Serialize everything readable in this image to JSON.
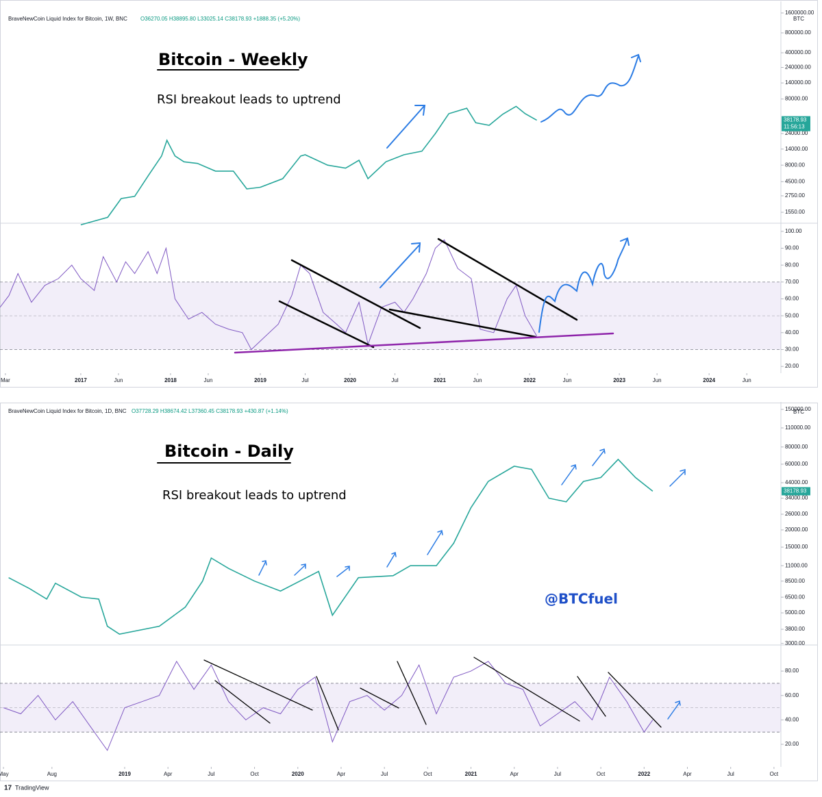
{
  "footer": "TradingView",
  "chart_data": [
    {
      "type": "line",
      "legend_text": "BraveNewCoin Liquid Index for Bitcoin, 1W, BNC",
      "ohlc": "O36270.05 H38895.80 L33025.14 C38178.93 +1888.35 (+5.20%)",
      "title": "Bitcoin - Weekly",
      "subtitle": "RSI breakout leads to uptrend",
      "currency": "BTC",
      "price_label": "38178.93",
      "countdown": "11:56:13",
      "log_scale": true,
      "xlim": [
        2016.1,
        2024.8
      ],
      "ylim": [
        1085,
        1980000
      ],
      "yticks": [
        {
          "value": 1600000,
          "label": "1600000.00"
        },
        {
          "value": 800000,
          "label": "800000.00"
        },
        {
          "value": 400000,
          "label": "400000.00"
        },
        {
          "value": 240000,
          "label": "240000.00"
        },
        {
          "value": 140000,
          "label": "140000.00"
        },
        {
          "value": 80000,
          "label": "80000.00"
        },
        {
          "value": 24000,
          "label": "24000.00"
        },
        {
          "value": 14000,
          "label": "14000.00"
        },
        {
          "value": 8000,
          "label": "8000.00"
        },
        {
          "value": 4500,
          "label": "4500.00"
        },
        {
          "value": 2750,
          "label": "2750.00"
        },
        {
          "value": 1550,
          "label": "1550.00"
        }
      ],
      "series": [
        {
          "name": "BTC",
          "color": "#26a69a",
          "x": [
            2017.0,
            2017.3,
            2017.45,
            2017.6,
            2017.75,
            2017.9,
            2017.96,
            2018.05,
            2018.15,
            2018.3,
            2018.5,
            2018.7,
            2018.85,
            2019.0,
            2019.25,
            2019.45,
            2019.5,
            2019.75,
            2019.95,
            2020.1,
            2020.2,
            2020.4,
            2020.6,
            2020.8,
            2020.95,
            2021.1,
            2021.3,
            2021.4,
            2021.55,
            2021.7,
            2021.85,
            2021.95,
            2022.08
          ],
          "values": [
            1000,
            1300,
            2500,
            2700,
            5500,
            11000,
            19000,
            11000,
            9000,
            8500,
            6500,
            6500,
            3500,
            3700,
            5000,
            11000,
            11500,
            8000,
            7200,
            9500,
            5000,
            9000,
            11500,
            13000,
            24000,
            48000,
            58000,
            35000,
            32000,
            47000,
            62000,
            48000,
            38178.93
          ]
        }
      ]
    },
    {
      "type": "line",
      "xlim": [
        2016.1,
        2024.8
      ],
      "ylim": [
        16,
        104
      ],
      "band": [
        30,
        70
      ],
      "xticks": [
        {
          "value": 2016.16,
          "label": "Mar"
        },
        2017,
        {
          "value": 2017.42,
          "label": "Jun"
        },
        2018,
        {
          "value": 2018.42,
          "label": "Jun"
        },
        2019,
        {
          "value": 2019.5,
          "label": "Jul"
        },
        2020,
        {
          "value": 2020.5,
          "label": "Jul"
        },
        2021,
        {
          "value": 2021.42,
          "label": "Jun"
        },
        2022,
        {
          "value": 2022.42,
          "label": "Jun"
        },
        2023,
        {
          "value": 2023.42,
          "label": "Jun"
        },
        2024,
        {
          "value": 2024.42,
          "label": "Jun"
        }
      ],
      "yticks": [
        {
          "value": 100,
          "label": "100.00"
        },
        {
          "value": 90,
          "label": "90.00"
        },
        {
          "value": 80,
          "label": "80.00"
        },
        {
          "value": 70,
          "label": "70.00"
        },
        {
          "value": 60,
          "label": "60.00"
        },
        {
          "value": 50,
          "label": "50.00"
        },
        {
          "value": 40,
          "label": "40.00"
        },
        {
          "value": 30,
          "label": "30.00"
        },
        {
          "value": 20,
          "label": "20.00"
        }
      ],
      "series": [
        {
          "name": "RSI",
          "color": "#7e57c2",
          "x": [
            2016.1,
            2016.2,
            2016.3,
            2016.45,
            2016.6,
            2016.75,
            2016.9,
            2017.0,
            2017.15,
            2017.25,
            2017.4,
            2017.5,
            2017.6,
            2017.75,
            2017.85,
            2017.95,
            2018.05,
            2018.2,
            2018.35,
            2018.5,
            2018.65,
            2018.8,
            2018.9,
            2019.0,
            2019.2,
            2019.35,
            2019.45,
            2019.55,
            2019.7,
            2019.85,
            2019.95,
            2020.1,
            2020.2,
            2020.35,
            2020.5,
            2020.6,
            2020.7,
            2020.85,
            2020.95,
            2021.05,
            2021.2,
            2021.35,
            2021.45,
            2021.6,
            2021.75,
            2021.85,
            2021.95,
            2022.08
          ],
          "values": [
            55,
            62,
            75,
            58,
            68,
            72,
            80,
            72,
            65,
            85,
            70,
            82,
            75,
            88,
            75,
            90,
            60,
            48,
            52,
            45,
            42,
            40,
            30,
            35,
            45,
            62,
            80,
            75,
            52,
            45,
            40,
            58,
            33,
            55,
            58,
            52,
            60,
            75,
            90,
            95,
            78,
            72,
            42,
            40,
            60,
            68,
            50,
            38
          ]
        }
      ]
    },
    {
      "type": "line",
      "legend_text": "BraveNewCoin Liquid Index for Bitcoin, 1D, BNC",
      "ohlc": "O37728.29 H38674.42 L37360.45 C38178.93 +430.87 (+1.14%)",
      "title": "Bitcoin - Daily",
      "subtitle": "RSI breakout leads to uptrend",
      "annotation": "@BTCfuel",
      "currency": "BTC",
      "price_label": "38178.93",
      "log_scale": true,
      "xlim": [
        2018.28,
        2022.79
      ],
      "ylim": [
        2990,
        155000
      ],
      "yticks": [
        {
          "value": 150000,
          "label": "150000.00"
        },
        {
          "value": 110000,
          "label": "110000.00"
        },
        {
          "value": 80000,
          "label": "80000.00"
        },
        {
          "value": 60000,
          "label": "60000.00"
        },
        {
          "value": 44000,
          "label": "44000.00"
        },
        {
          "value": 34000,
          "label": "34000.00"
        },
        {
          "value": 26000,
          "label": "26000.00"
        },
        {
          "value": 20000,
          "label": "20000.00"
        },
        {
          "value": 15000,
          "label": "15000.00"
        },
        {
          "value": 11000,
          "label": "11000.00"
        },
        {
          "value": 8500,
          "label": "8500.00"
        },
        {
          "value": 6500,
          "label": "6500.00"
        },
        {
          "value": 5000,
          "label": "5000.00"
        },
        {
          "value": 3800,
          "label": "3800.00"
        },
        {
          "value": 3000,
          "label": "3000.00"
        }
      ],
      "series": [
        {
          "name": "BTC",
          "color": "#26a69a",
          "x": [
            2018.33,
            2018.45,
            2018.55,
            2018.6,
            2018.75,
            2018.85,
            2018.9,
            2018.97,
            2019.2,
            2019.35,
            2019.45,
            2019.5,
            2019.6,
            2019.75,
            2019.9,
            2020.05,
            2020.12,
            2020.2,
            2020.35,
            2020.55,
            2020.65,
            2020.8,
            2020.9,
            2021.0,
            2021.1,
            2021.25,
            2021.35,
            2021.45,
            2021.55,
            2021.65,
            2021.75,
            2021.85,
            2021.95,
            2022.05
          ],
          "values": [
            9000,
            7500,
            6300,
            8200,
            6500,
            6300,
            4000,
            3500,
            4000,
            5500,
            8500,
            12500,
            10500,
            8500,
            7200,
            9000,
            10000,
            4800,
            9000,
            9300,
            11000,
            11000,
            16000,
            29000,
            45000,
            58000,
            55000,
            34000,
            32000,
            45000,
            48000,
            65000,
            48000,
            38178.93
          ]
        }
      ]
    },
    {
      "type": "line",
      "xlim": [
        2018.28,
        2022.79
      ],
      "ylim": [
        1.5,
        99.7
      ],
      "band": [
        30,
        70
      ],
      "xticks": [
        {
          "value": 2018.3,
          "label": "May"
        },
        {
          "value": 2018.58,
          "label": "Aug"
        },
        2019,
        {
          "value": 2019.25,
          "label": "Apr"
        },
        {
          "value": 2019.5,
          "label": "Jul"
        },
        {
          "value": 2019.75,
          "label": "Oct"
        },
        2020,
        {
          "value": 2020.25,
          "label": "Apr"
        },
        {
          "value": 2020.5,
          "label": "Jul"
        },
        {
          "value": 2020.75,
          "label": "Oct"
        },
        2021,
        {
          "value": 2021.25,
          "label": "Apr"
        },
        {
          "value": 2021.5,
          "label": "Jul"
        },
        {
          "value": 2021.75,
          "label": "Oct"
        },
        2022,
        {
          "value": 2022.25,
          "label": "Apr"
        },
        {
          "value": 2022.5,
          "label": "Jul"
        },
        {
          "value": 2022.75,
          "label": "Oct"
        }
      ],
      "yticks": [
        {
          "value": 80,
          "label": "80.00"
        },
        {
          "value": 60,
          "label": "60.00"
        },
        {
          "value": 40,
          "label": "40.00"
        },
        {
          "value": 20,
          "label": "20.00"
        }
      ],
      "series": [
        {
          "name": "RSI",
          "color": "#7e57c2",
          "x": [
            2018.3,
            2018.4,
            2018.5,
            2018.6,
            2018.7,
            2018.8,
            2018.9,
            2019.0,
            2019.1,
            2019.2,
            2019.3,
            2019.4,
            2019.5,
            2019.6,
            2019.7,
            2019.8,
            2019.9,
            2020.0,
            2020.1,
            2020.2,
            2020.3,
            2020.4,
            2020.5,
            2020.6,
            2020.7,
            2020.8,
            2020.9,
            2021.0,
            2021.1,
            2021.2,
            2021.3,
            2021.4,
            2021.5,
            2021.6,
            2021.7,
            2021.8,
            2021.9,
            2022.0,
            2022.05
          ],
          "values": [
            50,
            45,
            60,
            40,
            55,
            35,
            15,
            50,
            55,
            60,
            88,
            65,
            85,
            55,
            40,
            50,
            45,
            65,
            75,
            22,
            55,
            60,
            48,
            60,
            85,
            45,
            75,
            80,
            88,
            70,
            65,
            35,
            45,
            55,
            40,
            75,
            55,
            30,
            40
          ]
        }
      ]
    }
  ]
}
